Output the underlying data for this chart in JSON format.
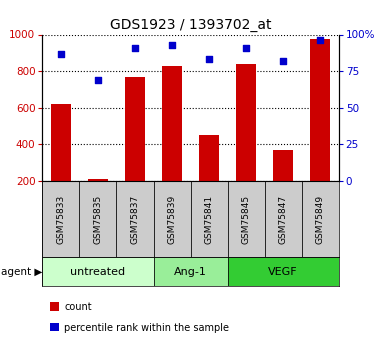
{
  "title": "GDS1923 / 1393702_at",
  "samples": [
    "GSM75833",
    "GSM75835",
    "GSM75837",
    "GSM75839",
    "GSM75841",
    "GSM75845",
    "GSM75847",
    "GSM75849"
  ],
  "counts": [
    620,
    210,
    770,
    830,
    450,
    840,
    370,
    975
  ],
  "percentiles": [
    87,
    69,
    91,
    93,
    83,
    91,
    82,
    96
  ],
  "ylim_left": [
    200,
    1000
  ],
  "ylim_right": [
    0,
    100
  ],
  "yticks_left": [
    200,
    400,
    600,
    800,
    1000
  ],
  "yticks_right": [
    0,
    25,
    50,
    75,
    100
  ],
  "groups": [
    {
      "label": "untreated",
      "start": 0,
      "end": 3,
      "color": "#ccffcc"
    },
    {
      "label": "Ang-1",
      "start": 3,
      "end": 5,
      "color": "#99ee99"
    },
    {
      "label": "VEGF",
      "start": 5,
      "end": 8,
      "color": "#33cc33"
    }
  ],
  "bar_color": "#cc0000",
  "dot_color": "#0000cc",
  "bar_width": 0.55,
  "bg_plot": "#ffffff",
  "bg_label": "#cccccc",
  "title_fontsize": 10,
  "tick_fontsize": 7.5,
  "sample_fontsize": 6.5,
  "legend_fontsize": 7,
  "agent_label": "agent"
}
